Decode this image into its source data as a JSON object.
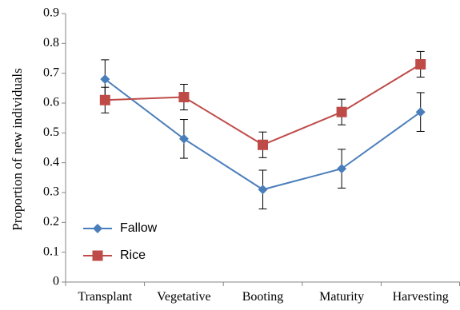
{
  "chart_data": {
    "type": "line",
    "title": "",
    "xlabel": "",
    "ylabel": "Proportion of new individuals",
    "categories": [
      "Transplant",
      "Vegetative",
      "Booting",
      "Maturity",
      "Harvesting"
    ],
    "ylim": [
      0,
      0.9
    ],
    "yticks": [
      "0",
      "0.1",
      "0.2",
      "0.3",
      "0.4",
      "0.5",
      "0.6",
      "0.7",
      "0.8",
      "0.9"
    ],
    "grid": false,
    "legend_position": "bottom-left",
    "series": [
      {
        "name": "Fallow",
        "marker": "diamond",
        "color": "#4a7ebb",
        "values": [
          0.68,
          0.48,
          0.31,
          0.38,
          0.57
        ],
        "error": [
          0.065,
          0.065,
          0.065,
          0.065,
          0.065
        ]
      },
      {
        "name": "Rice",
        "marker": "square",
        "color": "#be4b48",
        "values": [
          0.61,
          0.62,
          0.46,
          0.57,
          0.73
        ],
        "error": [
          0.043,
          0.043,
          0.043,
          0.043,
          0.043
        ]
      }
    ]
  }
}
